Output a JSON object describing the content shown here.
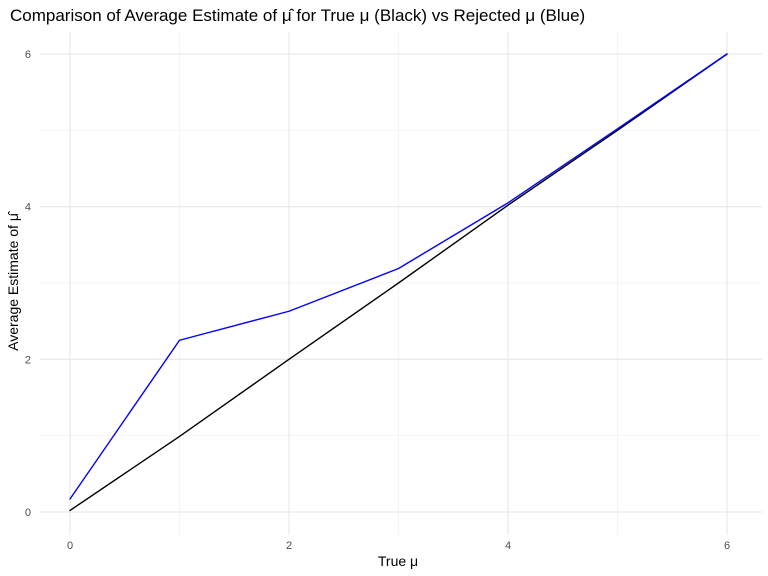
{
  "chart_data": {
    "type": "line",
    "title": "Comparison of Average Estimate of μ̂ for True μ (Black) vs Rejected μ (Blue)",
    "xlabel": "True μ",
    "ylabel": "Average Estimate of μ̂",
    "xlim": [
      0,
      6
    ],
    "ylim": [
      0,
      6
    ],
    "x_ticks": [
      0,
      2,
      4,
      6
    ],
    "y_ticks": [
      0,
      2,
      4,
      6
    ],
    "x_tick_labels": [
      "0",
      "2",
      "4",
      "6"
    ],
    "y_tick_labels": [
      "0",
      "2",
      "4",
      "6"
    ],
    "grid": true,
    "legend": "none",
    "x": [
      0,
      1,
      2,
      3,
      4,
      5,
      6
    ],
    "series": [
      {
        "color": "#000000",
        "values": [
          0.02,
          0.99,
          2.0,
          3.0,
          4.02,
          5.0,
          6.0
        ]
      },
      {
        "color": "#0000ff",
        "values": [
          0.17,
          2.25,
          2.63,
          3.19,
          4.05,
          5.02,
          6.0
        ]
      }
    ]
  }
}
